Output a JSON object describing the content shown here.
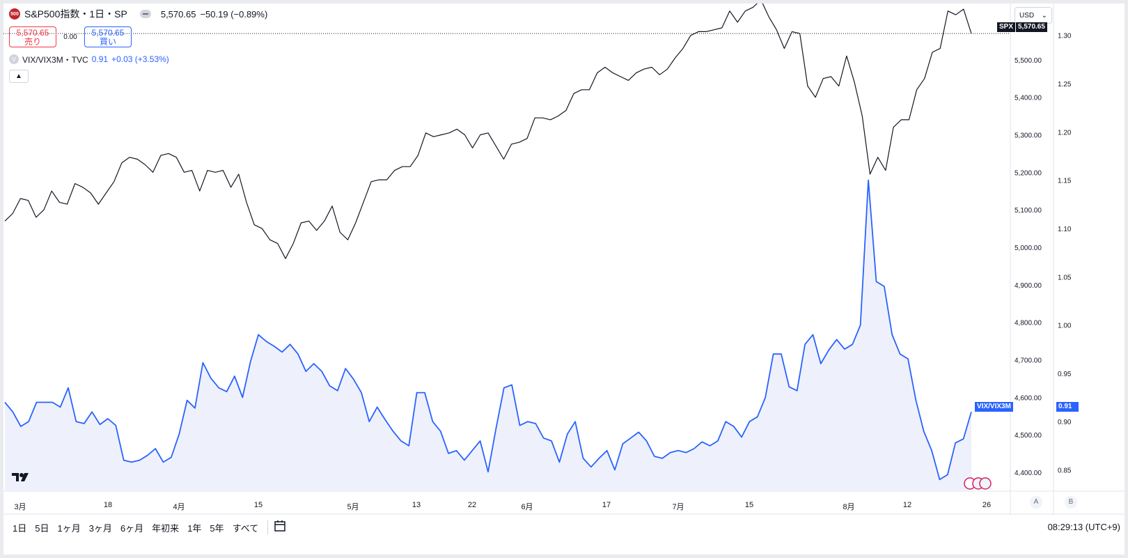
{
  "legend": {
    "logo_text": "500",
    "title": "S&P500指数・1日・SP",
    "last": "5,570.65",
    "change": "−50.19 (−0.89%)"
  },
  "trade": {
    "sell_price": "5,570.65",
    "sell_label": "売り",
    "spread": "0.00",
    "buy_price": "5,570.65",
    "buy_label": "買い"
  },
  "vix_legend": {
    "logo_text": "V",
    "name": "VIX/VIX3M・TVC",
    "value": "0.91",
    "change": "+0.03 (+3.53%)"
  },
  "collapse_icon": "chevron-up-icon",
  "currency": "USD",
  "price_tags": {
    "spx_label": "SPX",
    "spx_value": "5,570.65",
    "vix_label": "VIX/VIX3M",
    "vix_value": "0.91"
  },
  "axis_buttons": {
    "a": "A",
    "b": "B"
  },
  "time_labels": [
    "3月",
    "18",
    "4月",
    "15",
    "5月",
    "13",
    "22",
    "6月",
    "17",
    "7月",
    "15",
    "8月",
    "12",
    "26"
  ],
  "range_buttons": [
    "1日",
    "5日",
    "1ヶ月",
    "3ヶ月",
    "6ヶ月",
    "年初来",
    "1年",
    "5年",
    "すべて"
  ],
  "clock": "08:29:13 (UTC+9)",
  "colors": {
    "spx": "#131722",
    "vix": "#2962ff",
    "vix_fill": "#eef1fb",
    "sell": "#f23645",
    "buy": "#2962ff"
  },
  "chart_data": [
    {
      "type": "line",
      "series": [
        {
          "name": "SPX",
          "values": [
            5070,
            5090,
            5130,
            5125,
            5080,
            5100,
            5150,
            5120,
            5115,
            5170,
            5160,
            5145,
            5115,
            5145,
            5175,
            5225,
            5240,
            5235,
            5220,
            5200,
            5245,
            5250,
            5240,
            5200,
            5205,
            5150,
            5205,
            5200,
            5205,
            5160,
            5195,
            5120,
            5060,
            5050,
            5020,
            5010,
            4970,
            5010,
            5065,
            5070,
            5045,
            5070,
            5110,
            5040,
            5020,
            5065,
            5120,
            5175,
            5180,
            5180,
            5205,
            5215,
            5215,
            5245,
            5305,
            5295,
            5300,
            5305,
            5315,
            5300,
            5265,
            5300,
            5305,
            5270,
            5235,
            5275,
            5280,
            5290,
            5345,
            5345,
            5340,
            5350,
            5365,
            5410,
            5420,
            5420,
            5465,
            5480,
            5465,
            5455,
            5445,
            5465,
            5475,
            5480,
            5460,
            5475,
            5505,
            5530,
            5565,
            5575,
            5575,
            5580,
            5585,
            5630,
            5600,
            5630,
            5640,
            5660,
            5615,
            5580,
            5530,
            5575,
            5570,
            5430,
            5400,
            5450,
            5455,
            5430,
            5510,
            5440,
            5350,
            5195,
            5240,
            5205,
            5320,
            5340,
            5340,
            5420,
            5450,
            5520,
            5530,
            5630,
            5620,
            5635,
            5570
          ]
        }
      ],
      "ylim": [
        4350,
        5650
      ],
      "axis_ticks": [
        "5,500.00",
        "5,400.00",
        "5,300.00",
        "5,200.00",
        "5,100.00",
        "5,000.00",
        "4,900.00",
        "4,800.00",
        "4,700.00",
        "4,600.00",
        "4,500.00",
        "4,400.00"
      ]
    },
    {
      "type": "area",
      "series": [
        {
          "name": "VIX/VIX3M",
          "values": [
            0.92,
            0.91,
            0.895,
            0.9,
            0.92,
            0.92,
            0.92,
            0.915,
            0.935,
            0.9,
            0.898,
            0.91,
            0.897,
            0.903,
            0.896,
            0.86,
            0.858,
            0.86,
            0.865,
            0.872,
            0.858,
            0.863,
            0.887,
            0.922,
            0.914,
            0.961,
            0.945,
            0.935,
            0.931,
            0.947,
            0.925,
            0.962,
            0.99,
            0.983,
            0.978,
            0.972,
            0.98,
            0.97,
            0.952,
            0.96,
            0.952,
            0.937,
            0.932,
            0.955,
            0.944,
            0.93,
            0.9,
            0.915,
            0.902,
            0.89,
            0.88,
            0.875,
            0.93,
            0.93,
            0.9,
            0.89,
            0.867,
            0.87,
            0.86,
            0.87,
            0.88,
            0.848,
            0.893,
            0.935,
            0.938,
            0.896,
            0.9,
            0.898,
            0.883,
            0.88,
            0.858,
            0.887,
            0.9,
            0.862,
            0.853,
            0.862,
            0.87,
            0.85,
            0.877,
            0.883,
            0.889,
            0.88,
            0.864,
            0.862,
            0.868,
            0.87,
            0.868,
            0.872,
            0.879,
            0.875,
            0.88,
            0.9,
            0.895,
            0.884,
            0.9,
            0.905,
            0.925,
            0.97,
            0.97,
            0.936,
            0.932,
            0.98,
            0.99,
            0.96,
            0.974,
            0.985,
            0.975,
            0.98,
            1.0,
            1.15,
            1.045,
            1.04,
            0.99,
            0.97,
            0.965,
            0.922,
            0.89,
            0.87,
            0.84,
            0.845,
            0.878,
            0.882,
            0.91
          ]
        }
      ],
      "ylim": [
        0.828,
        1.333
      ],
      "axis_ticks": [
        "1.30",
        "1.25",
        "1.20",
        "1.15",
        "1.10",
        "1.05",
        "1.00",
        "0.95",
        "0.90",
        "0.85"
      ]
    }
  ]
}
